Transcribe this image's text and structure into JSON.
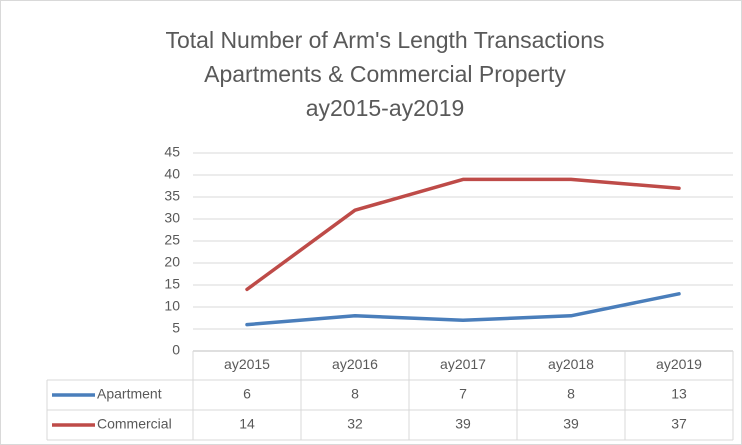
{
  "chart_data": {
    "type": "line",
    "title": [
      "Total Number of Arm's Length Transactions",
      "Apartments & Commercial Property",
      "ay2015-ay2019"
    ],
    "categories": [
      "ay2015",
      "ay2016",
      "ay2017",
      "ay2018",
      "ay2019"
    ],
    "series": [
      {
        "name": "Apartment",
        "color": "#4a7ebb",
        "values": [
          6,
          8,
          7,
          8,
          13
        ]
      },
      {
        "name": "Commercial",
        "color": "#be4b48",
        "values": [
          14,
          32,
          39,
          39,
          37
        ]
      }
    ],
    "ylim": [
      0,
      45
    ],
    "yticks": [
      0,
      5,
      10,
      15,
      20,
      25,
      30,
      35,
      40,
      45
    ],
    "grid": true,
    "data_table": true
  }
}
